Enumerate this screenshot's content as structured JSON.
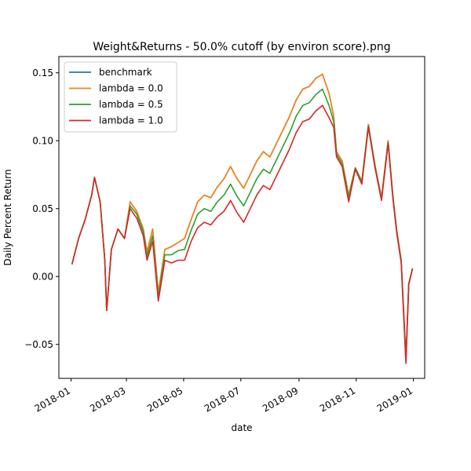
{
  "chart_data": {
    "type": "line",
    "title": "Weight&Returns - 50.0% cutoff (by environ score).png",
    "xlabel": "date",
    "ylabel": "Daily Percent Return",
    "xlim": [
      "2017-12-19",
      "2019-01-13"
    ],
    "ylim": [
      -0.075,
      0.162
    ],
    "x_ticks": [
      "2018-01",
      "2018-03",
      "2018-05",
      "2018-07",
      "2018-09",
      "2018-11",
      "2019-01"
    ],
    "y_ticks": [
      -0.05,
      0.0,
      0.05,
      0.1,
      0.15
    ],
    "y_tick_labels": [
      "−0.05",
      "0.00",
      "0.05",
      "0.10",
      "0.15"
    ],
    "grid": false,
    "legend_position": "upper-left",
    "x": [
      "2018-01-02",
      "2018-01-09",
      "2018-01-16",
      "2018-01-23",
      "2018-01-26",
      "2018-02-01",
      "2018-02-06",
      "2018-02-08",
      "2018-02-13",
      "2018-02-20",
      "2018-02-27",
      "2018-03-05",
      "2018-03-12",
      "2018-03-19",
      "2018-03-23",
      "2018-03-29",
      "2018-04-04",
      "2018-04-11",
      "2018-04-18",
      "2018-04-25",
      "2018-05-02",
      "2018-05-09",
      "2018-05-16",
      "2018-05-23",
      "2018-05-30",
      "2018-06-06",
      "2018-06-13",
      "2018-06-20",
      "2018-06-27",
      "2018-07-04",
      "2018-07-11",
      "2018-07-18",
      "2018-07-25",
      "2018-08-01",
      "2018-08-08",
      "2018-08-15",
      "2018-08-22",
      "2018-08-29",
      "2018-09-05",
      "2018-09-12",
      "2018-09-19",
      "2018-09-26",
      "2018-10-03",
      "2018-10-08",
      "2018-10-11",
      "2018-10-17",
      "2018-10-24",
      "2018-10-31",
      "2018-11-07",
      "2018-11-14",
      "2018-11-21",
      "2018-11-28",
      "2018-12-05",
      "2018-12-10",
      "2018-12-14",
      "2018-12-19",
      "2018-12-24",
      "2018-12-27",
      "2018-12-31"
    ],
    "series": [
      {
        "name": "benchmark",
        "color": "#1f77b4",
        "values": [
          0.009,
          0.028,
          0.042,
          0.06,
          0.073,
          0.055,
          0.012,
          -0.025,
          0.02,
          0.035,
          0.028,
          0.055,
          0.048,
          0.035,
          0.018,
          0.035,
          -0.012,
          0.02,
          0.022,
          0.025,
          0.028,
          0.042,
          0.055,
          0.06,
          0.058,
          0.066,
          0.072,
          0.081,
          0.072,
          0.065,
          0.075,
          0.085,
          0.092,
          0.088,
          0.098,
          0.108,
          0.118,
          0.13,
          0.138,
          0.14,
          0.146,
          0.149,
          0.135,
          0.118,
          0.092,
          0.085,
          0.06,
          0.08,
          0.07,
          0.112,
          0.082,
          0.058,
          0.1,
          0.06,
          0.035,
          0.012,
          -0.06,
          -0.005,
          0.006
        ]
      },
      {
        "name": "lambda = 0.0",
        "color": "#ff7f0e",
        "values": [
          0.009,
          0.028,
          0.042,
          0.06,
          0.073,
          0.055,
          0.012,
          -0.025,
          0.02,
          0.035,
          0.028,
          0.055,
          0.048,
          0.035,
          0.018,
          0.035,
          -0.012,
          0.02,
          0.022,
          0.025,
          0.028,
          0.042,
          0.055,
          0.06,
          0.058,
          0.066,
          0.072,
          0.081,
          0.072,
          0.065,
          0.075,
          0.085,
          0.092,
          0.088,
          0.098,
          0.108,
          0.118,
          0.13,
          0.138,
          0.14,
          0.146,
          0.149,
          0.135,
          0.118,
          0.092,
          0.085,
          0.06,
          0.08,
          0.07,
          0.112,
          0.082,
          0.058,
          0.1,
          0.06,
          0.035,
          0.012,
          -0.06,
          -0.005,
          0.006
        ]
      },
      {
        "name": "lambda = 0.5",
        "color": "#2ca02c",
        "values": [
          0.009,
          0.028,
          0.042,
          0.06,
          0.073,
          0.055,
          0.012,
          -0.025,
          0.02,
          0.035,
          0.028,
          0.052,
          0.046,
          0.033,
          0.015,
          0.03,
          -0.015,
          0.016,
          0.016,
          0.019,
          0.02,
          0.034,
          0.046,
          0.05,
          0.048,
          0.055,
          0.06,
          0.068,
          0.059,
          0.052,
          0.062,
          0.072,
          0.079,
          0.076,
          0.086,
          0.096,
          0.106,
          0.118,
          0.126,
          0.128,
          0.134,
          0.138,
          0.126,
          0.114,
          0.09,
          0.083,
          0.058,
          0.08,
          0.07,
          0.111,
          0.081,
          0.057,
          0.099,
          0.059,
          0.034,
          0.011,
          -0.062,
          -0.006,
          0.006
        ]
      },
      {
        "name": "lambda = 1.0",
        "color": "#d62728",
        "values": [
          0.009,
          0.028,
          0.042,
          0.06,
          0.073,
          0.055,
          0.012,
          -0.025,
          0.02,
          0.035,
          0.028,
          0.05,
          0.043,
          0.03,
          0.012,
          0.026,
          -0.018,
          0.012,
          0.01,
          0.012,
          0.012,
          0.026,
          0.036,
          0.04,
          0.038,
          0.044,
          0.048,
          0.056,
          0.047,
          0.04,
          0.05,
          0.06,
          0.067,
          0.064,
          0.074,
          0.084,
          0.094,
          0.106,
          0.114,
          0.116,
          0.122,
          0.126,
          0.117,
          0.11,
          0.088,
          0.081,
          0.055,
          0.079,
          0.068,
          0.11,
          0.08,
          0.056,
          0.098,
          0.058,
          0.033,
          0.01,
          -0.064,
          -0.006,
          0.006
        ]
      }
    ]
  }
}
